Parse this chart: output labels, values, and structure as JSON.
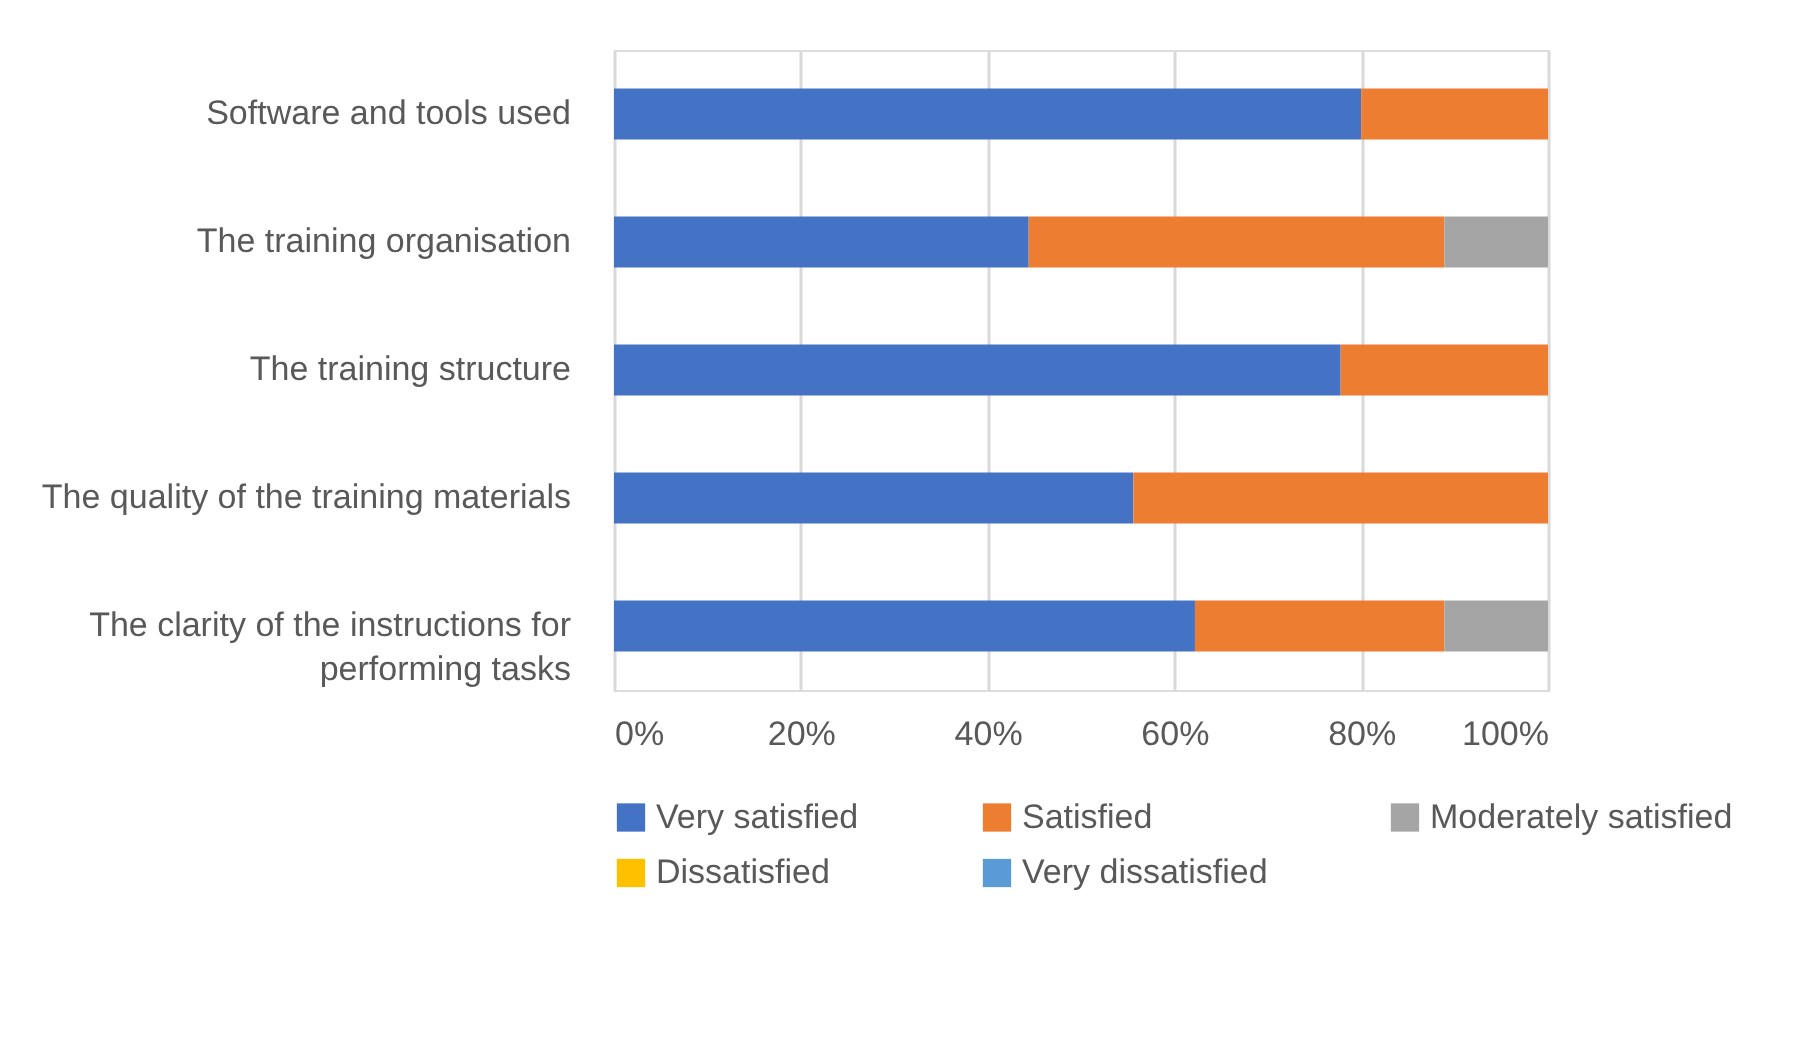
{
  "chart_data": {
    "type": "bar",
    "orientation": "horizontal",
    "stacked": true,
    "categories": [
      "Software and tools used",
      "The training organisation",
      "The training structure",
      "The quality of the training materials",
      "The clarity of the instructions for performing tasks"
    ],
    "series": [
      {
        "name": "Very satisfied",
        "color": "#4472c4",
        "values": [
          80.0,
          44.4,
          77.8,
          55.6,
          62.2
        ]
      },
      {
        "name": "Satisfied",
        "color": "#ed7d31",
        "values": [
          20.0,
          44.5,
          22.2,
          44.4,
          26.7
        ]
      },
      {
        "name": "Moderately satisfied",
        "color": "#a5a5a5",
        "values": [
          0,
          11.1,
          0,
          0,
          11.1
        ]
      },
      {
        "name": "Dissatisfied",
        "color": "#ffc000",
        "values": [
          0,
          0,
          0,
          0,
          0
        ]
      },
      {
        "name": "Very dissatisfied",
        "color": "#5b9bd5",
        "values": [
          0,
          0,
          0,
          0,
          0
        ]
      }
    ],
    "xlim": [
      0,
      100
    ],
    "xticks": [
      {
        "value": 0,
        "label": "0%"
      },
      {
        "value": 20,
        "label": "20%"
      },
      {
        "value": 40,
        "label": "40%"
      },
      {
        "value": 60,
        "label": "60%"
      },
      {
        "value": 80,
        "label": "80%"
      },
      {
        "value": 100,
        "label": "100%"
      }
    ],
    "grid": "x",
    "legend": "bottom"
  }
}
